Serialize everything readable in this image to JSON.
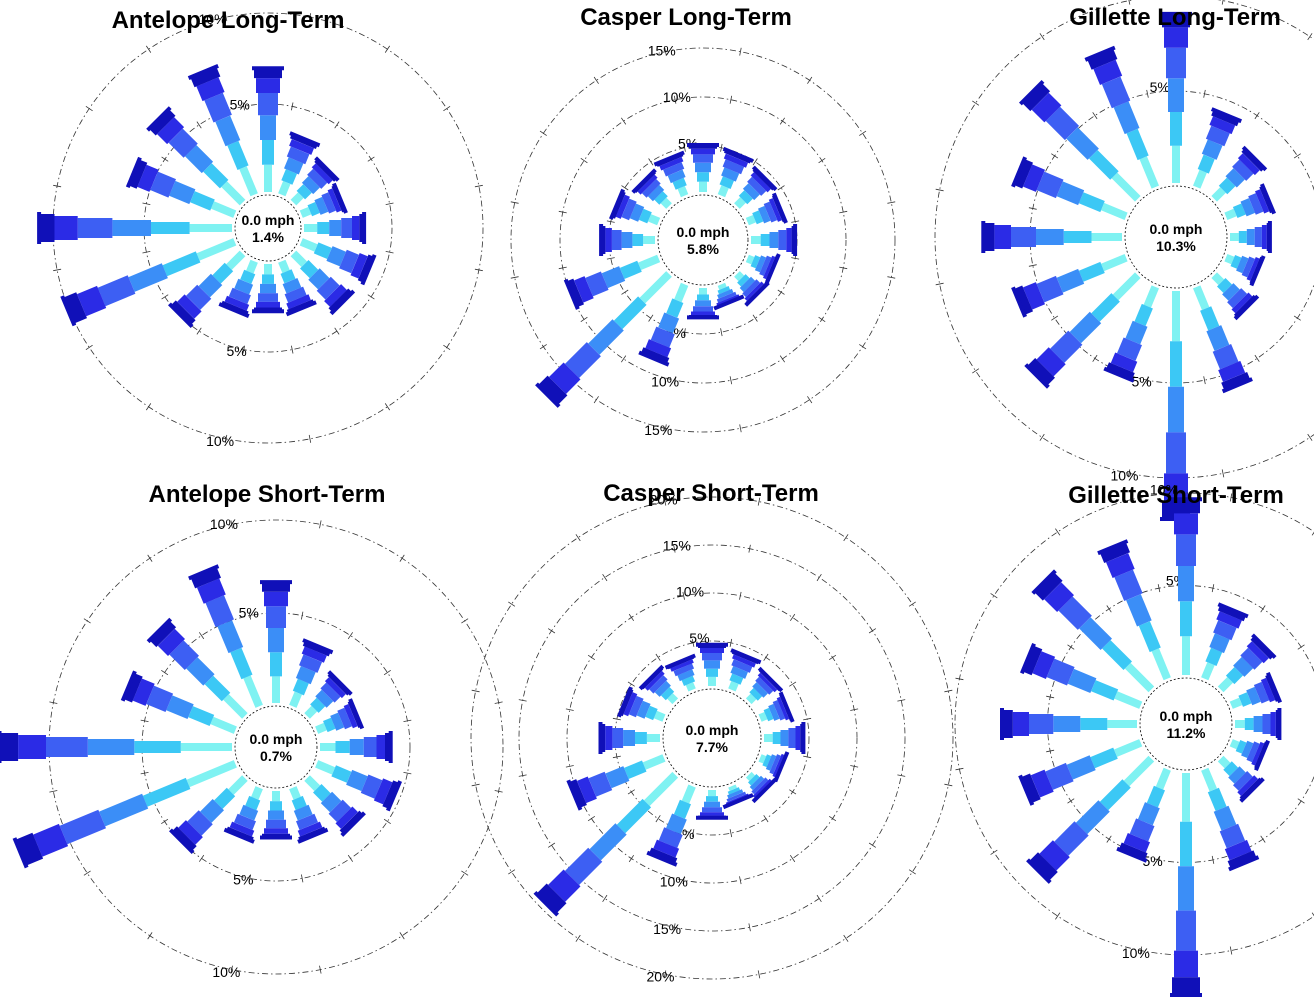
{
  "colors": {
    "bins": [
      "#7ff2f2",
      "#3cc8f5",
      "#3b8ef7",
      "#3d5ff3",
      "#2b2be6",
      "#1010b8"
    ],
    "ring": "#333333"
  },
  "chart_data": [
    {
      "type": "windrose",
      "title": "Antelope Long-Term",
      "calm_speed": "0.0 mph",
      "calm_percent": "1.4%",
      "ring_labels": [
        "5%",
        "10%"
      ],
      "directions": [
        "N",
        "NNE",
        "NE",
        "ENE",
        "E",
        "ESE",
        "SE",
        "SSE",
        "S",
        "SSW",
        "SW",
        "WSW",
        "W",
        "WNW",
        "NW",
        "NNW"
      ],
      "totals": [
        6.8,
        3.3,
        2.6,
        2.3,
        3.3,
        4.0,
        3.8,
        2.8,
        2.6,
        2.9,
        4.8,
        9.9,
        10.6,
        6.0,
        6.5,
        7.3
      ]
    },
    {
      "type": "windrose",
      "title": "Casper Long-Term",
      "calm_speed": "0.0 mph",
      "calm_percent": "5.8%",
      "ring_labels": [
        "5%",
        "10%",
        "15%"
      ],
      "directions": [
        "N",
        "NNE",
        "NE",
        "ENE",
        "E",
        "ESE",
        "SE",
        "SSE",
        "S",
        "SSW",
        "SW",
        "WSW",
        "W",
        "WNW",
        "NW",
        "NNW"
      ],
      "totals": [
        4.8,
        4.5,
        4.0,
        3.6,
        4.5,
        2.8,
        2.9,
        2.0,
        3.0,
        8.2,
        17.5,
        9.6,
        5.5,
        4.6,
        3.6,
        4.1
      ]
    },
    {
      "type": "windrose",
      "title": "Gillette Long-Term",
      "calm_speed": "0.0 mph",
      "calm_percent": "10.3%",
      "ring_labels": [
        "5%",
        "10%"
      ],
      "directions": [
        "N",
        "NNE",
        "NE",
        "ENE",
        "E",
        "ESE",
        "SE",
        "SSE",
        "S",
        "SSW",
        "SW",
        "WSW",
        "W",
        "WNW",
        "NW",
        "NNW"
      ],
      "totals": [
        8.9,
        4.1,
        3.0,
        2.4,
        2.1,
        1.8,
        2.4,
        5.6,
        12.0,
        5.0,
        7.5,
        6.1,
        7.3,
        6.1,
        7.9,
        7.6
      ]
    },
    {
      "type": "windrose",
      "title": "Antelope Short-Term",
      "calm_speed": "0.0 mph",
      "calm_percent": "0.7%",
      "ring_labels": [
        "5%",
        "10%"
      ],
      "directions": [
        "N",
        "NNE",
        "NE",
        "ENE",
        "E",
        "ESE",
        "SE",
        "SSE",
        "S",
        "SSW",
        "SW",
        "WSW",
        "W",
        "WNW",
        "NW",
        "NNW"
      ],
      "totals": [
        6.5,
        3.5,
        2.5,
        2.3,
        3.8,
        4.5,
        3.5,
        2.8,
        2.5,
        2.8,
        4.8,
        12.5,
        12.5,
        6.2,
        6.5,
        7.8
      ]
    },
    {
      "type": "windrose",
      "title": "Casper Short-Term",
      "calm_speed": "0.0 mph",
      "calm_percent": "7.7%",
      "ring_labels": [
        "5%",
        "10%",
        "15%",
        "20%"
      ],
      "directions": [
        "N",
        "NNE",
        "NE",
        "ENE",
        "E",
        "ESE",
        "SE",
        "SSE",
        "S",
        "SSW",
        "SW",
        "WSW",
        "W",
        "WNW",
        "NW",
        "NNW"
      ],
      "totals": [
        4.3,
        3.8,
        3.2,
        3.0,
        4.1,
        2.4,
        2.3,
        1.7,
        2.9,
        8.2,
        19.0,
        10.1,
        6.2,
        4.4,
        3.5,
        3.2
      ]
    },
    {
      "type": "windrose",
      "title": "Gillette Short-Term",
      "calm_speed": "0.0 mph",
      "calm_percent": "11.2%",
      "ring_labels": [
        "5%",
        "10%"
      ],
      "directions": [
        "N",
        "NNE",
        "NE",
        "ENE",
        "E",
        "ESE",
        "SE",
        "SSE",
        "S",
        "SSW",
        "SW",
        "WSW",
        "W",
        "WNW",
        "NW",
        "NNW"
      ],
      "totals": [
        9.5,
        4.0,
        3.3,
        2.5,
        2.4,
        1.8,
        2.4,
        5.5,
        12.0,
        5.0,
        8.6,
        6.7,
        7.3,
        6.6,
        8.2,
        7.7
      ]
    }
  ]
}
